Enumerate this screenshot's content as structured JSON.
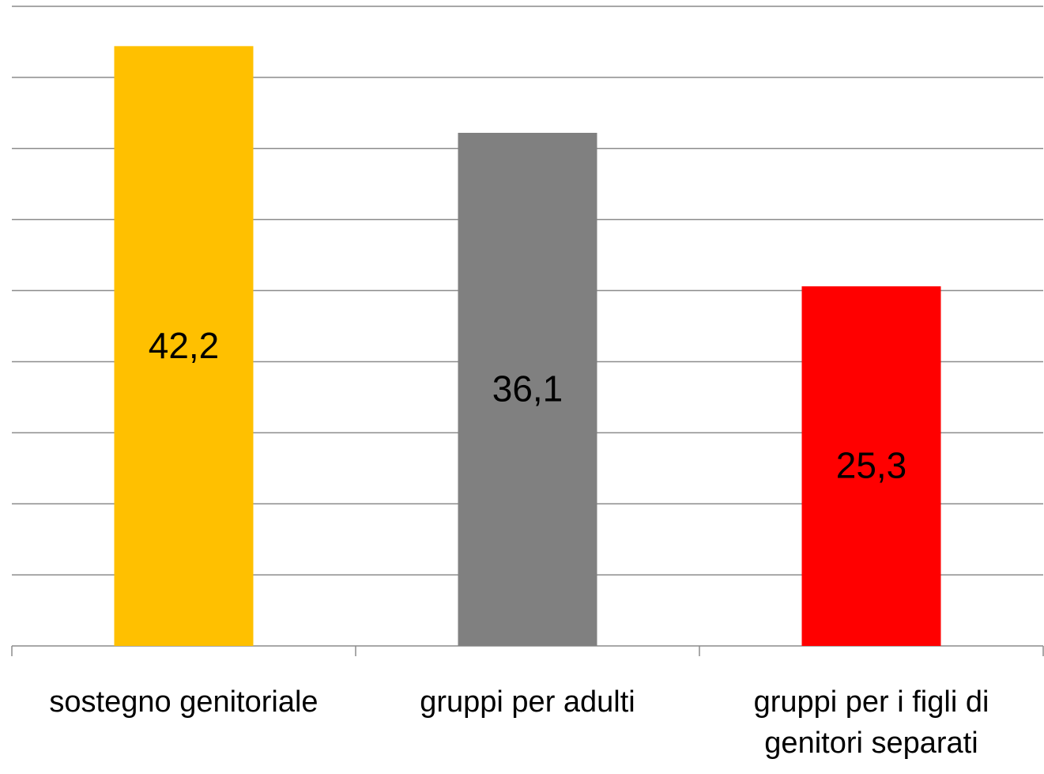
{
  "chart_data": {
    "type": "bar",
    "categories": [
      "sostegno genitoriale",
      "gruppi per adulti",
      "gruppi per i figli di genitori separati"
    ],
    "values": [
      42.2,
      36.1,
      25.3
    ],
    "value_labels": [
      "42,2",
      "36,1",
      "25,3"
    ],
    "colors": [
      "#ffc000",
      "#808080",
      "#ff0000"
    ],
    "ylim": [
      0,
      45
    ],
    "yticks": [
      0,
      5,
      10,
      15,
      20,
      25,
      30,
      35,
      40,
      45
    ],
    "grid": true
  }
}
